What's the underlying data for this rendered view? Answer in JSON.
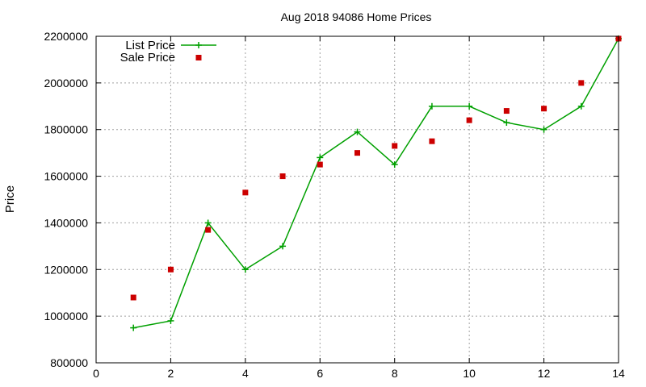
{
  "chart_data": {
    "type": "line",
    "title": "Aug 2018 94086 Home Prices",
    "xlabel": "",
    "ylabel": "Price",
    "xlim": [
      0,
      14
    ],
    "ylim": [
      800000,
      2200000
    ],
    "xticks": [
      0,
      2,
      4,
      6,
      8,
      10,
      12,
      14
    ],
    "yticks": [
      800000,
      1000000,
      1200000,
      1400000,
      1600000,
      1800000,
      2000000,
      2200000
    ],
    "grid": true,
    "legend_position": "top-left",
    "series": [
      {
        "name": "List Price",
        "style": "line-with-plus-markers",
        "color": "#00a000",
        "points": [
          [
            1,
            950000
          ],
          [
            2,
            980000
          ],
          [
            3,
            1400000
          ],
          [
            4,
            1200000
          ],
          [
            5,
            1300000
          ],
          [
            6,
            1680000
          ],
          [
            7,
            1790000
          ],
          [
            8,
            1650000
          ],
          [
            9,
            1900000
          ],
          [
            10,
            1900000
          ],
          [
            11,
            1830000
          ],
          [
            12,
            1800000
          ],
          [
            13,
            1900000
          ],
          [
            14,
            2190000
          ]
        ]
      },
      {
        "name": "Sale Price",
        "style": "square-points",
        "color": "#cc0000",
        "points": [
          [
            1,
            1080000
          ],
          [
            2,
            1200000
          ],
          [
            3,
            1370000
          ],
          [
            4,
            1530000
          ],
          [
            5,
            1600000
          ],
          [
            6,
            1650000
          ],
          [
            7,
            1700000
          ],
          [
            8,
            1730000
          ],
          [
            9,
            1750000
          ],
          [
            10,
            1840000
          ],
          [
            11,
            1880000
          ],
          [
            12,
            1890000
          ],
          [
            13,
            2000000
          ],
          [
            14,
            2190000
          ]
        ]
      }
    ]
  }
}
